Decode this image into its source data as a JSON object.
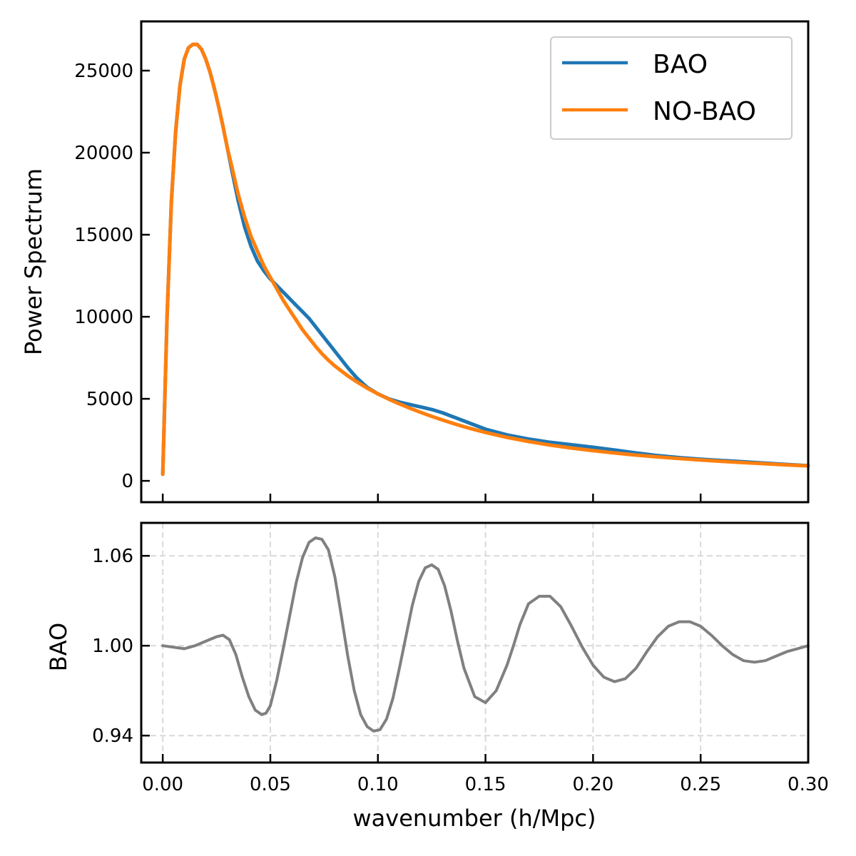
{
  "chart_data": [
    {
      "type": "line",
      "title": "",
      "xlabel": "",
      "ylabel": "Power Spectrum",
      "xlim": [
        -0.01,
        0.3
      ],
      "ylim": [
        -1300,
        28000
      ],
      "yticks": [
        0,
        5000,
        10000,
        15000,
        20000,
        25000
      ],
      "ytick_labels": [
        "0",
        "5000",
        "10000",
        "15000",
        "20000",
        "25000"
      ],
      "xticks": [
        0.0,
        0.05,
        0.1,
        0.15,
        0.2,
        0.25,
        0.3
      ],
      "grid": false,
      "legend": {
        "placement": "top-right",
        "entries": [
          "BAO",
          "NO-BAO"
        ]
      },
      "series": [
        {
          "name": "BAO",
          "color": "#1f77b4",
          "x": [
            0.0,
            0.002,
            0.004,
            0.006,
            0.008,
            0.01,
            0.012,
            0.014,
            0.016,
            0.018,
            0.02,
            0.022,
            0.024,
            0.026,
            0.028,
            0.03,
            0.032,
            0.035,
            0.038,
            0.041,
            0.044,
            0.047,
            0.05,
            0.053,
            0.056,
            0.059,
            0.062,
            0.065,
            0.068,
            0.071,
            0.074,
            0.077,
            0.08,
            0.083,
            0.086,
            0.09,
            0.095,
            0.1,
            0.105,
            0.11,
            0.115,
            0.12,
            0.125,
            0.13,
            0.135,
            0.14,
            0.145,
            0.15,
            0.16,
            0.17,
            0.18,
            0.19,
            0.2,
            0.21,
            0.22,
            0.23,
            0.24,
            0.25,
            0.26,
            0.27,
            0.28,
            0.29,
            0.3
          ],
          "y": [
            400,
            10000,
            17000,
            21300,
            24100,
            25700,
            26400,
            26600,
            26600,
            26300,
            25700,
            24900,
            23900,
            22800,
            21600,
            20300,
            19000,
            17100,
            15500,
            14300,
            13400,
            12800,
            12300,
            11900,
            11500,
            11100,
            10700,
            10300,
            9900,
            9400,
            8900,
            8400,
            7900,
            7400,
            6900,
            6300,
            5700,
            5300,
            5000,
            4800,
            4650,
            4500,
            4350,
            4150,
            3900,
            3650,
            3400,
            3150,
            2800,
            2550,
            2350,
            2200,
            2050,
            1880,
            1700,
            1540,
            1420,
            1320,
            1240,
            1160,
            1080,
            1000,
            920
          ]
        },
        {
          "name": "NO-BAO",
          "color": "#ff7f0e",
          "x": [
            0.0,
            0.002,
            0.004,
            0.006,
            0.008,
            0.01,
            0.012,
            0.014,
            0.016,
            0.018,
            0.02,
            0.022,
            0.024,
            0.026,
            0.028,
            0.03,
            0.032,
            0.035,
            0.038,
            0.041,
            0.044,
            0.047,
            0.05,
            0.053,
            0.056,
            0.059,
            0.062,
            0.065,
            0.068,
            0.071,
            0.074,
            0.077,
            0.08,
            0.083,
            0.086,
            0.09,
            0.095,
            0.1,
            0.105,
            0.11,
            0.115,
            0.12,
            0.125,
            0.13,
            0.135,
            0.14,
            0.145,
            0.15,
            0.16,
            0.17,
            0.18,
            0.19,
            0.2,
            0.21,
            0.22,
            0.23,
            0.24,
            0.25,
            0.26,
            0.27,
            0.28,
            0.29,
            0.3
          ],
          "y": [
            400,
            10000,
            17000,
            21300,
            24100,
            25700,
            26400,
            26600,
            26600,
            26300,
            25700,
            24900,
            23900,
            22800,
            21600,
            20300,
            19200,
            17500,
            16100,
            14900,
            14000,
            13100,
            12400,
            11700,
            11000,
            10400,
            9800,
            9200,
            8700,
            8200,
            7750,
            7350,
            7000,
            6700,
            6400,
            6050,
            5650,
            5300,
            4980,
            4690,
            4420,
            4170,
            3930,
            3710,
            3500,
            3300,
            3120,
            2950,
            2650,
            2400,
            2180,
            2000,
            1840,
            1700,
            1570,
            1460,
            1360,
            1270,
            1190,
            1110,
            1040,
            970,
            910
          ]
        }
      ]
    },
    {
      "type": "line",
      "title": "",
      "xlabel": "wavenumber (h/Mpc)",
      "ylabel": "BAO",
      "xlim": [
        -0.01,
        0.3
      ],
      "ylim": [
        0.922,
        1.082
      ],
      "yticks": [
        0.94,
        1.0,
        1.06
      ],
      "ytick_labels": [
        "0.94",
        "1.00",
        "1.06"
      ],
      "xticks": [
        0.0,
        0.05,
        0.1,
        0.15,
        0.2,
        0.25,
        0.3
      ],
      "xtick_labels": [
        "0.00",
        "0.05",
        "0.10",
        "0.15",
        "0.20",
        "0.25",
        "0.30"
      ],
      "grid": true,
      "series": [
        {
          "color": "#808080",
          "x": [
            0.0,
            0.005,
            0.01,
            0.015,
            0.02,
            0.025,
            0.028,
            0.031,
            0.034,
            0.037,
            0.04,
            0.043,
            0.046,
            0.048,
            0.05,
            0.053,
            0.056,
            0.059,
            0.062,
            0.065,
            0.068,
            0.071,
            0.074,
            0.077,
            0.08,
            0.083,
            0.086,
            0.089,
            0.092,
            0.095,
            0.098,
            0.101,
            0.104,
            0.107,
            0.11,
            0.113,
            0.116,
            0.119,
            0.122,
            0.125,
            0.128,
            0.131,
            0.134,
            0.137,
            0.14,
            0.145,
            0.15,
            0.155,
            0.16,
            0.163,
            0.166,
            0.17,
            0.175,
            0.18,
            0.185,
            0.19,
            0.195,
            0.2,
            0.205,
            0.21,
            0.215,
            0.22,
            0.225,
            0.23,
            0.235,
            0.24,
            0.245,
            0.25,
            0.255,
            0.26,
            0.265,
            0.27,
            0.275,
            0.28,
            0.285,
            0.29,
            0.295,
            0.3
          ],
          "y": [
            1.0,
            0.999,
            0.998,
            1.0,
            1.003,
            1.006,
            1.007,
            1.004,
            0.994,
            0.979,
            0.966,
            0.957,
            0.954,
            0.955,
            0.96,
            0.977,
            0.998,
            1.02,
            1.042,
            1.059,
            1.069,
            1.072,
            1.071,
            1.064,
            1.046,
            1.02,
            0.993,
            0.97,
            0.954,
            0.946,
            0.943,
            0.944,
            0.951,
            0.965,
            0.985,
            1.006,
            1.027,
            1.043,
            1.052,
            1.054,
            1.051,
            1.04,
            1.023,
            1.003,
            0.985,
            0.966,
            0.962,
            0.97,
            0.987,
            1.0,
            1.014,
            1.028,
            1.033,
            1.033,
            1.026,
            1.013,
            0.999,
            0.987,
            0.979,
            0.976,
            0.978,
            0.985,
            0.996,
            1.006,
            1.013,
            1.016,
            1.016,
            1.013,
            1.007,
            1.0,
            0.994,
            0.99,
            0.989,
            0.99,
            0.993,
            0.996,
            0.998,
            1.0
          ]
        }
      ]
    }
  ]
}
